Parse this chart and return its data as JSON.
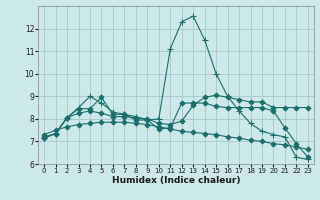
{
  "bg_color": "#cce8e8",
  "grid_color": "#aacccc",
  "line_color": "#1a6e6e",
  "xlabel": "Humidex (Indice chaleur)",
  "xlim": [
    -0.5,
    23.5
  ],
  "ylim": [
    6,
    13
  ],
  "yticks": [
    6,
    7,
    8,
    9,
    10,
    11,
    12
  ],
  "xticks": [
    0,
    1,
    2,
    3,
    4,
    5,
    6,
    7,
    8,
    9,
    10,
    11,
    12,
    13,
    14,
    15,
    16,
    17,
    18,
    19,
    20,
    21,
    22,
    23
  ],
  "lines": [
    {
      "x": [
        0,
        1,
        2,
        3,
        4,
        5,
        6,
        7,
        8,
        9,
        10,
        11,
        12,
        13,
        14,
        15,
        16,
        17,
        18,
        19,
        20,
        21,
        22,
        23
      ],
      "y": [
        7.15,
        7.35,
        8.05,
        8.5,
        9.0,
        8.7,
        8.3,
        8.2,
        8.1,
        7.95,
        8.0,
        11.1,
        12.3,
        12.55,
        11.5,
        10.0,
        9.0,
        8.35,
        7.8,
        7.45,
        7.3,
        7.2,
        6.3,
        6.2
      ],
      "marker": "+"
    },
    {
      "x": [
        0,
        1,
        2,
        3,
        4,
        5,
        6,
        7,
        8,
        9,
        10,
        11,
        12,
        13,
        14,
        15,
        16,
        17,
        18,
        19,
        20,
        21,
        22,
        23
      ],
      "y": [
        7.2,
        7.35,
        8.05,
        8.25,
        8.35,
        8.25,
        8.1,
        8.1,
        8.05,
        8.0,
        7.8,
        7.75,
        7.9,
        8.6,
        8.95,
        9.05,
        8.95,
        8.85,
        8.75,
        8.75,
        8.5,
        8.5,
        8.5,
        8.5
      ],
      "marker": "D"
    },
    {
      "x": [
        0,
        1,
        2,
        3,
        4,
        5,
        6,
        7,
        8,
        9,
        10,
        11,
        12,
        13,
        14,
        15,
        16,
        17,
        18,
        19,
        20,
        21,
        22,
        23
      ],
      "y": [
        7.15,
        7.35,
        8.05,
        8.45,
        8.45,
        8.95,
        8.2,
        8.2,
        7.95,
        7.95,
        7.55,
        7.6,
        8.7,
        8.7,
        8.7,
        8.55,
        8.5,
        8.5,
        8.5,
        8.5,
        8.35,
        7.6,
        6.9,
        6.3
      ],
      "marker": "D"
    },
    {
      "x": [
        0,
        1,
        2,
        3,
        4,
        5,
        6,
        7,
        8,
        9,
        10,
        11,
        12,
        13,
        14,
        15,
        16,
        17,
        18,
        19,
        20,
        21,
        22,
        23
      ],
      "y": [
        7.3,
        7.5,
        7.65,
        7.75,
        7.8,
        7.85,
        7.85,
        7.85,
        7.8,
        7.75,
        7.65,
        7.55,
        7.45,
        7.4,
        7.35,
        7.3,
        7.2,
        7.15,
        7.05,
        7.0,
        6.9,
        6.85,
        6.75,
        6.65
      ],
      "marker": "D"
    }
  ]
}
